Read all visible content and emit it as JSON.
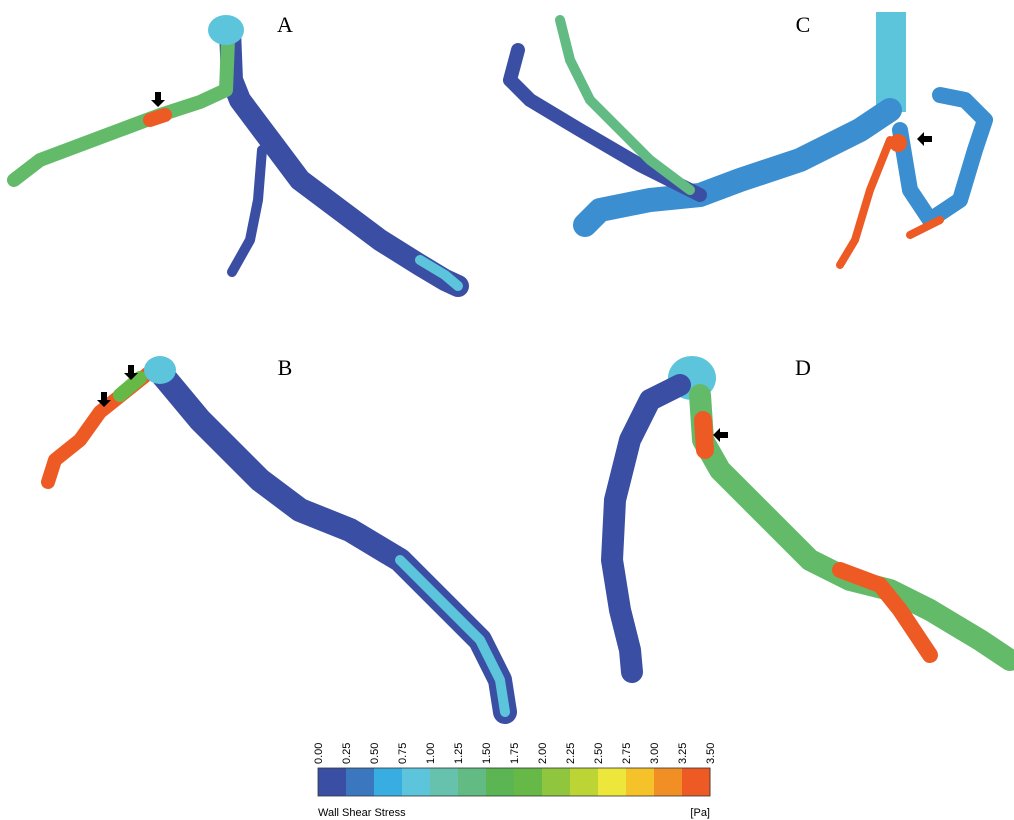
{
  "panels": [
    {
      "label": "A"
    },
    {
      "label": "B"
    },
    {
      "label": "C"
    },
    {
      "label": "D"
    }
  ],
  "colorbar": {
    "ticks": [
      "0.00",
      "0.25",
      "0.50",
      "0.75",
      "1.00",
      "1.25",
      "1.50",
      "1.75",
      "2.00",
      "2.25",
      "2.50",
      "2.75",
      "3.00",
      "3.25",
      "3.50"
    ],
    "colors": [
      "#3a4fa3",
      "#3b77bf",
      "#38ade2",
      "#5cc5dc",
      "#66c2ad",
      "#62bb83",
      "#5bb553",
      "#66b946",
      "#90c63e",
      "#bcd434",
      "#ece73a",
      "#f5c22a",
      "#f18f24",
      "#ee5a24"
    ],
    "title": "Wall Shear Stress",
    "unit": "[Pa]"
  }
}
